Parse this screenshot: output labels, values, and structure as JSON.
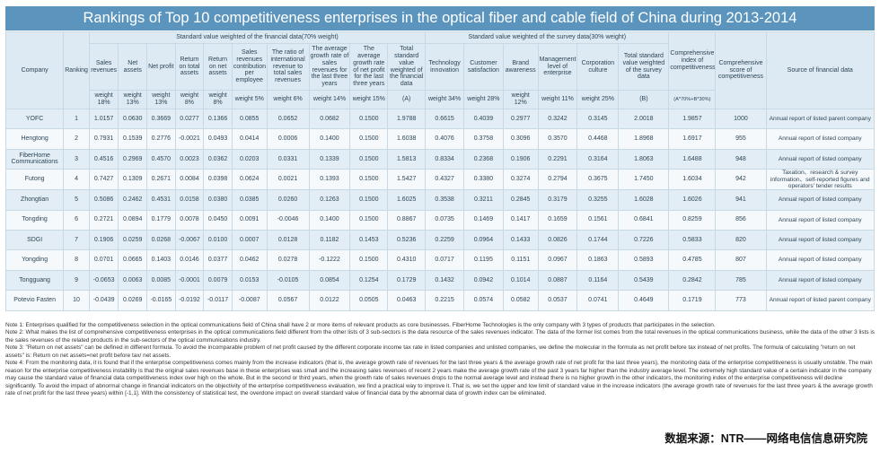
{
  "title": "Rankings of Top 10 competitiveness enterprises in the optical fiber and cable field of China during 2013-2014",
  "header": {
    "company": "Company",
    "ranking": "Ranking",
    "group_financial": "Standard value weighted of the financial data(70% weight)",
    "group_survey": "Standard value weighted of the survey data(30% weight)",
    "columns": [
      {
        "label": "Sales revenues",
        "weight": "weight 18%"
      },
      {
        "label": "Net assets",
        "weight": "weight 13%"
      },
      {
        "label": "Net profit",
        "weight": "weight 13%"
      },
      {
        "label": "Return on total assets",
        "weight": "weight 8%"
      },
      {
        "label": "Return on net assets",
        "weight": "weight 8%"
      },
      {
        "label": "Sales revenues contribution per employee",
        "weight": "weight 5%"
      },
      {
        "label": "The ratio of international revenue to total sales revenues",
        "weight": "weight 6%"
      },
      {
        "label": "The average growth rate of sales revenues for the last three years",
        "weight": "weight 14%"
      },
      {
        "label": "The average growth rate of net profit for the last three years",
        "weight": "weight 15%"
      },
      {
        "label": "Total standard value weighted of the financial data",
        "weight": "(A)"
      },
      {
        "label": "Technology innovation",
        "weight": "weight 34%"
      },
      {
        "label": "Customer satisfaction",
        "weight": "weight 28%"
      },
      {
        "label": "Brand awareness",
        "weight": "weight 12%"
      },
      {
        "label": "Management level of enterprise",
        "weight": "weight 11%"
      },
      {
        "label": "Corporation culture",
        "weight": "weight 25%"
      },
      {
        "label": "Total standard value weighted of the survey data",
        "weight": "(B)"
      },
      {
        "label": "Comprehensive index of competitiveness",
        "weight": "(A*70%+B*30%)"
      }
    ],
    "score": "Comprehensive score of competitiveness",
    "source": "Source of financial data"
  },
  "rows": [
    {
      "company": "YOFC",
      "rank": "1",
      "values": [
        "1.0157",
        "0.0630",
        "0.3669",
        "0.0277",
        "0.1366",
        "0.0855",
        "0.0652",
        "0.0682",
        "0.1500",
        "1.9788",
        "0.6615",
        "0.4039",
        "0.2977",
        "0.3242",
        "0.3145",
        "2.0018",
        "1.9857"
      ],
      "score": "1000",
      "source": "Annual report of listed parent company"
    },
    {
      "company": "Hengtong",
      "rank": "2",
      "values": [
        "0.7931",
        "0.1539",
        "0.2776",
        "-0.0021",
        "0.0493",
        "0.0414",
        "0.0006",
        "0.1400",
        "0.1500",
        "1.6038",
        "0.4076",
        "0.3758",
        "0.3096",
        "0.3570",
        "0.4468",
        "1.8968",
        "1.6917"
      ],
      "score": "955",
      "source": "Annual report of listed company"
    },
    {
      "company": "FiberHome Communications",
      "rank": "3",
      "values": [
        "0.4516",
        "0.2969",
        "0.4570",
        "0.0023",
        "0.0362",
        "0.0203",
        "0.0331",
        "0.1339",
        "0.1500",
        "1.5813",
        "0.8334",
        "0.2368",
        "0.1906",
        "0.2291",
        "0.3164",
        "1.8063",
        "1.6488"
      ],
      "score": "948",
      "source": "Annual report of listed company"
    },
    {
      "company": "Futong",
      "rank": "4",
      "values": [
        "0.7427",
        "0.1309",
        "0.2671",
        "0.0084",
        "0.0398",
        "0.0624",
        "0.0021",
        "0.1393",
        "0.1500",
        "1.5427",
        "0.4327",
        "0.3380",
        "0.3274",
        "0.2794",
        "0.3675",
        "1.7450",
        "1.6034"
      ],
      "score": "942",
      "source": "Taxation、research & survey information、self-reported figures and operators' tender results"
    },
    {
      "company": "Zhongtian",
      "rank": "5",
      "values": [
        "0.5086",
        "0.2462",
        "0.4531",
        "0.0158",
        "0.0380",
        "0.0385",
        "0.0260",
        "0.1263",
        "0.1500",
        "1.6025",
        "0.3538",
        "0.3211",
        "0.2845",
        "0.3179",
        "0.3255",
        "1.6028",
        "1.6026"
      ],
      "score": "941",
      "source": "Annual report of listed company"
    },
    {
      "company": "Tongding",
      "rank": "6",
      "values": [
        "0.2721",
        "0.0894",
        "0.1779",
        "0.0078",
        "0.0450",
        "0.0091",
        "-0.0046",
        "0.1400",
        "0.1500",
        "0.8867",
        "0.0735",
        "0.1469",
        "0.1417",
        "0.1659",
        "0.1561",
        "0.6841",
        "0.8259"
      ],
      "score": "856",
      "source": "Annual report of listed company"
    },
    {
      "company": "SDGI",
      "rank": "7",
      "values": [
        "0.1906",
        "0.0259",
        "0.0268",
        "-0.0067",
        "0.0100",
        "0.0007",
        "0.0128",
        "0.1182",
        "0.1453",
        "0.5236",
        "0.2259",
        "0.0964",
        "0.1433",
        "0.0826",
        "0.1744",
        "0.7226",
        "0.5833"
      ],
      "score": "820",
      "source": "Annual report of listed company"
    },
    {
      "company": "Yongding",
      "rank": "8",
      "values": [
        "0.0701",
        "0.0665",
        "0.1403",
        "0.0146",
        "0.0377",
        "0.0462",
        "0.0278",
        "-0.1222",
        "0.1500",
        "0.4310",
        "0.0717",
        "0.1195",
        "0.1151",
        "0.0967",
        "0.1863",
        "0.5893",
        "0.4785"
      ],
      "score": "807",
      "source": "Annual report of listed company"
    },
    {
      "company": "Tongguang",
      "rank": "9",
      "values": [
        "-0.0653",
        "0.0063",
        "0.0085",
        "-0.0001",
        "0.0079",
        "0.0153",
        "-0.0105",
        "0.0854",
        "0.1254",
        "0.1729",
        "0.1432",
        "0.0942",
        "0.1014",
        "0.0887",
        "0.1164",
        "0.5439",
        "0.2842"
      ],
      "score": "785",
      "source": "Annual report of listed company"
    },
    {
      "company": "Potevio Fasten",
      "rank": "10",
      "values": [
        "-0.0439",
        "0.0269",
        "-0.0165",
        "-0.0192",
        "-0.0117",
        "-0.0087",
        "0.0567",
        "0.0122",
        "0.0505",
        "0.0463",
        "0.2215",
        "0.0574",
        "0.0582",
        "0.0537",
        "0.0741",
        "0.4649",
        "0.1719"
      ],
      "score": "773",
      "source": "Annual report of listed parent company"
    }
  ],
  "notes": [
    "Note 1: Enterprises qualified for the competitiveness selection in the optical communications field of China shall have 2 or more items of relevant products as core businesses. FiberHome Technologies is the only company with 3 types of products that participates in the selection.",
    "Note 2: What makes the list of comprehensive competitiveness enterprises in the optical communications field different from the other lists of 3 sub-sectors is the data resource of the sales revenues indicator. The data of the former list comes from the total revenues in the optical communications business, while the data of the other 3 lists is the sales revenues of the related products in the sub-sectors of the optical communications industry.",
    "Note 3: \"Return on net assets\" can be defined in different formula. To avoid the incomparable problem of net profit caused by the different corporate income tax rate in listed companies and unlisted companies, we define the molecular in the formula as net profit before tax instead of net profits. The formula of calculating \"return on net assets\" is: Return on net assets=net profit before tax/ net assets.",
    "Note 4: From the monitoring data, it is found that if the enterprise competitiveness comes mainly from the increase indicators (that is, the average growth rate of revenues for the last three years & the average growth rate of net profit for the last three years), the monitoring data of the enterprise competitiveness is usually unstable. The main reason for the enterprise competitiveness instability is that the original sales revenues base in these enterprises was small and the increasing sales revenues of recent 2 years make the average growth rate of the past 3 years far higher than the industry average level. The extremely high standard value of a certain indicator in the company may cause the standard value of financial data competitiveness index over high on the whole. But in the second or third years, when the growth rate of sales revenues drops to the normal average level and instead there is no higher growth in the other indicators, the monitoring index of the enterprise competitiveness will decline significantly. To avoid the impact of abnormal change in financial indicators on the objectivity of the enterprise competitiveness evaluation, we find a practical way to improve it. That is, we set the upper and low limit of standard value in the increase indicators (the average growth rate of revenues for the last three years & the average growth rate of net profit for the last three years) within [-1,1]. With the consistency of statistical test, the overdone impact on overall standard value of financial data by the abnormal data of growth index can be eliminated."
  ],
  "data_source": "数据来源：NTR——网络电信信息研究院"
}
